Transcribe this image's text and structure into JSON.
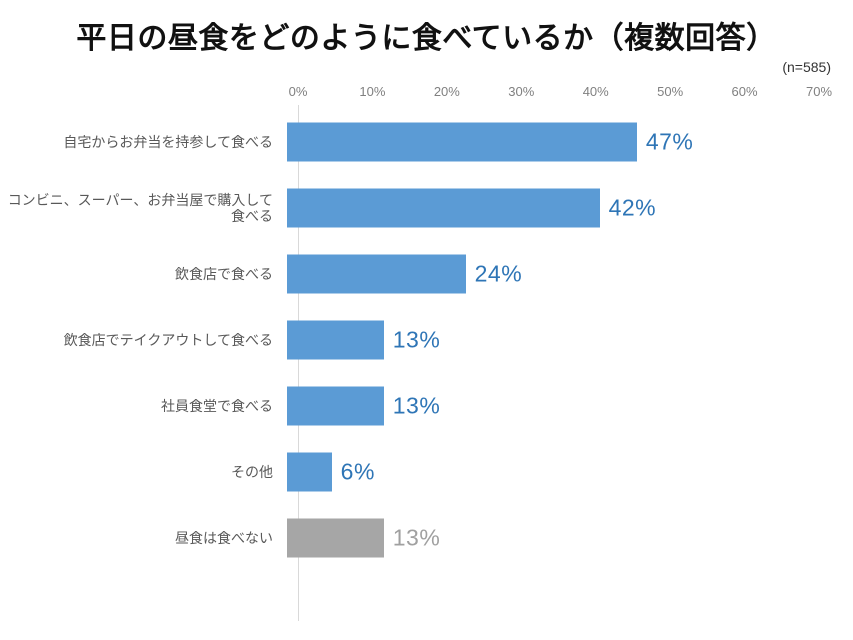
{
  "title": "平日の昼食をどのように食べているか（複数回答）",
  "sample_size_label": "(n=585)",
  "colors": {
    "bar_blue": "#5b9bd5",
    "bar_gray": "#a6a6a6",
    "value_text_blue": "#2e75b6",
    "value_text_gray": "#a0a0a0",
    "category_label": "#595959",
    "axis_label": "#808080",
    "axis_line": "#d9d9d9",
    "title_text": "#111111"
  },
  "chart_data": {
    "type": "bar",
    "orientation": "horizontal",
    "title": "平日の昼食をどのように食べているか（複数回答）",
    "sample_size": 585,
    "x_axis": {
      "position": "top",
      "min": 0,
      "max": 70,
      "unit": "%",
      "ticks": [
        "0%",
        "10%",
        "20%",
        "30%",
        "40%",
        "50%",
        "60%",
        "70%"
      ]
    },
    "grid": false,
    "legend": "none",
    "items": [
      {
        "label": "自宅からお弁当を持参して食べる",
        "value": 47,
        "display": "47%",
        "color": "blue"
      },
      {
        "label": "コンビニ、スーパー、お弁当屋で購入して食べる",
        "value": 42,
        "display": "42%",
        "color": "blue"
      },
      {
        "label": "飲食店で食べる",
        "value": 24,
        "display": "24%",
        "color": "blue"
      },
      {
        "label": "飲食店でテイクアウトして食べる",
        "value": 13,
        "display": "13%",
        "color": "blue"
      },
      {
        "label": "社員食堂で食べる",
        "value": 13,
        "display": "13%",
        "color": "blue"
      },
      {
        "label": "その他",
        "value": 6,
        "display": "6%",
        "color": "blue"
      },
      {
        "label": "昼食は食べない",
        "value": 13,
        "display": "13%",
        "color": "gray"
      }
    ]
  }
}
